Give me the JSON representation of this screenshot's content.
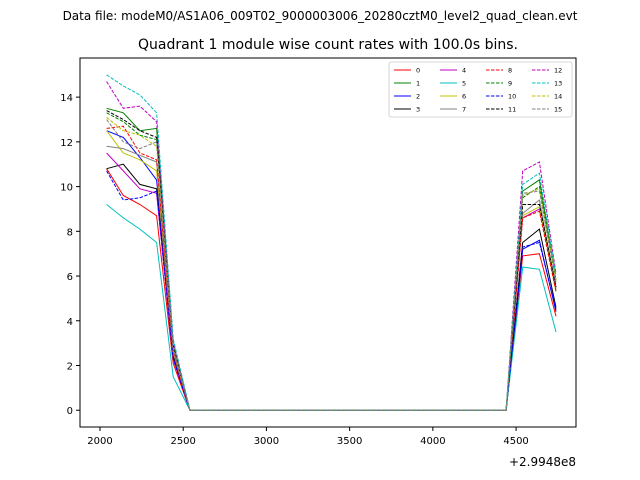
{
  "figure": {
    "suptitle": "Data file: modeM0/AS1A06_009T02_9000003006_20280cztM0_level2_quad_clean.evt",
    "title": "Quadrant 1 module wise count rates with 100.0s bins.",
    "offset_text": "+2.9948e8"
  },
  "chart_data": {
    "type": "line",
    "title": "Quadrant 1 module wise count rates with 100.0s bins.",
    "xlabel": "",
    "ylabel": "",
    "x_offset": 299480000,
    "xlim": [
      1880,
      4860
    ],
    "ylim": [
      -0.75,
      15.75
    ],
    "xticks": [
      2000,
      2500,
      3000,
      3500,
      4000,
      4500
    ],
    "yticks": [
      0,
      2,
      4,
      6,
      8,
      10,
      12,
      14
    ],
    "xtick_labels": [
      "2000",
      "2500",
      "3000",
      "3500",
      "4000",
      "4500"
    ],
    "ytick_labels": [
      "0",
      "2",
      "4",
      "6",
      "8",
      "10",
      "12",
      "14"
    ],
    "grid": false,
    "legend_location": "top-right",
    "legend_columns": 4,
    "x": [
      2040,
      2140,
      2240,
      2340,
      2440,
      2540,
      2640,
      2740,
      2840,
      2940,
      3040,
      3140,
      3240,
      3340,
      3440,
      3540,
      3640,
      3740,
      3840,
      3940,
      4040,
      4140,
      4240,
      4340,
      4440,
      4540,
      4640,
      4740
    ],
    "series": [
      {
        "name": "0",
        "color": "#ff0000",
        "dash": "solid",
        "head": [
          10.8,
          9.6,
          9.2,
          8.7,
          2.1,
          0
        ],
        "tail": [
          0,
          6.9,
          7.0,
          4.2
        ]
      },
      {
        "name": "1",
        "color": "#008000",
        "dash": "solid",
        "head": [
          13.5,
          13.3,
          12.5,
          12.6,
          2.9,
          0
        ],
        "tail": [
          0,
          9.8,
          10.3,
          5.8
        ]
      },
      {
        "name": "2",
        "color": "#0000ff",
        "dash": "solid",
        "head": [
          12.5,
          12.2,
          11.3,
          10.3,
          2.5,
          0
        ],
        "tail": [
          0,
          7.2,
          7.6,
          4.4
        ]
      },
      {
        "name": "3",
        "color": "#000000",
        "dash": "solid",
        "head": [
          10.8,
          11.0,
          10.1,
          9.9,
          2.4,
          0
        ],
        "tail": [
          0,
          7.5,
          8.1,
          4.6
        ]
      },
      {
        "name": "4",
        "color": "#bf00bf",
        "dash": "solid",
        "head": [
          11.5,
          10.7,
          9.9,
          9.7,
          2.3,
          0
        ],
        "tail": [
          0,
          8.6,
          9.0,
          5.5
        ]
      },
      {
        "name": "5",
        "color": "#00bfbf",
        "dash": "solid",
        "head": [
          9.2,
          8.6,
          8.1,
          7.5,
          1.5,
          0
        ],
        "tail": [
          0,
          6.4,
          6.3,
          3.5
        ]
      },
      {
        "name": "6",
        "color": "#bfbf00",
        "dash": "solid",
        "head": [
          12.5,
          11.5,
          11.2,
          10.7,
          2.6,
          0
        ],
        "tail": [
          0,
          8.7,
          9.1,
          5.3
        ]
      },
      {
        "name": "7",
        "color": "#808080",
        "dash": "solid",
        "head": [
          11.8,
          11.7,
          11.4,
          11.1,
          2.7,
          0
        ],
        "tail": [
          0,
          8.8,
          9.4,
          5.4
        ]
      },
      {
        "name": "8",
        "color": "#ff0000",
        "dash": "dashed",
        "head": [
          12.6,
          12.7,
          11.5,
          11.2,
          2.7,
          0
        ],
        "tail": [
          0,
          8.6,
          8.9,
          5.3
        ]
      },
      {
        "name": "9",
        "color": "#008000",
        "dash": "dashed",
        "head": [
          13.3,
          12.9,
          12.3,
          12.1,
          2.9,
          0
        ],
        "tail": [
          0,
          9.5,
          10.0,
          5.8
        ]
      },
      {
        "name": "10",
        "color": "#0000ff",
        "dash": "dashed",
        "head": [
          10.7,
          9.4,
          9.5,
          9.8,
          2.3,
          0
        ],
        "tail": [
          0,
          7.3,
          7.5,
          4.5
        ]
      },
      {
        "name": "11",
        "color": "#000000",
        "dash": "dashed",
        "head": [
          13.4,
          13.0,
          12.5,
          12.2,
          2.9,
          0
        ],
        "tail": [
          0,
          9.2,
          9.2,
          5.5
        ]
      },
      {
        "name": "12",
        "color": "#bf00bf",
        "dash": "dashed",
        "head": [
          14.7,
          13.5,
          13.6,
          12.9,
          3.1,
          0
        ],
        "tail": [
          0,
          10.7,
          11.1,
          6.1
        ]
      },
      {
        "name": "13",
        "color": "#00bfbf",
        "dash": "dashed",
        "head": [
          15.0,
          14.5,
          14.1,
          13.3,
          3.2,
          0
        ],
        "tail": [
          0,
          10.1,
          10.6,
          6.0
        ]
      },
      {
        "name": "14",
        "color": "#bfbf00",
        "dash": "dashed",
        "head": [
          13.1,
          12.5,
          12.3,
          11.8,
          2.8,
          0
        ],
        "tail": [
          0,
          9.6,
          9.9,
          5.8
        ]
      },
      {
        "name": "15",
        "color": "#808080",
        "dash": "dashed",
        "head": [
          13.0,
          12.0,
          11.7,
          12.0,
          2.8,
          0
        ],
        "tail": [
          0,
          9.7,
          9.8,
          5.7
        ]
      }
    ]
  }
}
